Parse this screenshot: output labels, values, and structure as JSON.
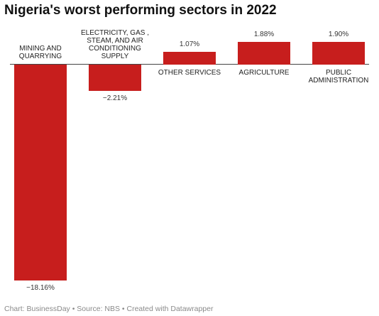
{
  "chart_data": {
    "type": "bar",
    "title": "Nigeria's worst performing sectors in 2022",
    "categories": [
      "MINING AND QUARRYING",
      "ELECTRICITY, GAS , STEAM, AND AIR CONDITIONING SUPPLY",
      "OTHER SERVICES",
      "AGRICULTURE",
      "PUBLIC ADMINISTRATION"
    ],
    "values": [
      -18.16,
      -2.21,
      1.07,
      1.88,
      1.9
    ],
    "value_labels": [
      "−18.16%",
      "−2.21%",
      "1.07%",
      "1.88%",
      "1.90%"
    ],
    "color": "#c71e1d",
    "footer": "Chart: BusinessDay • Source: NBS • Created with Datawrapper"
  }
}
